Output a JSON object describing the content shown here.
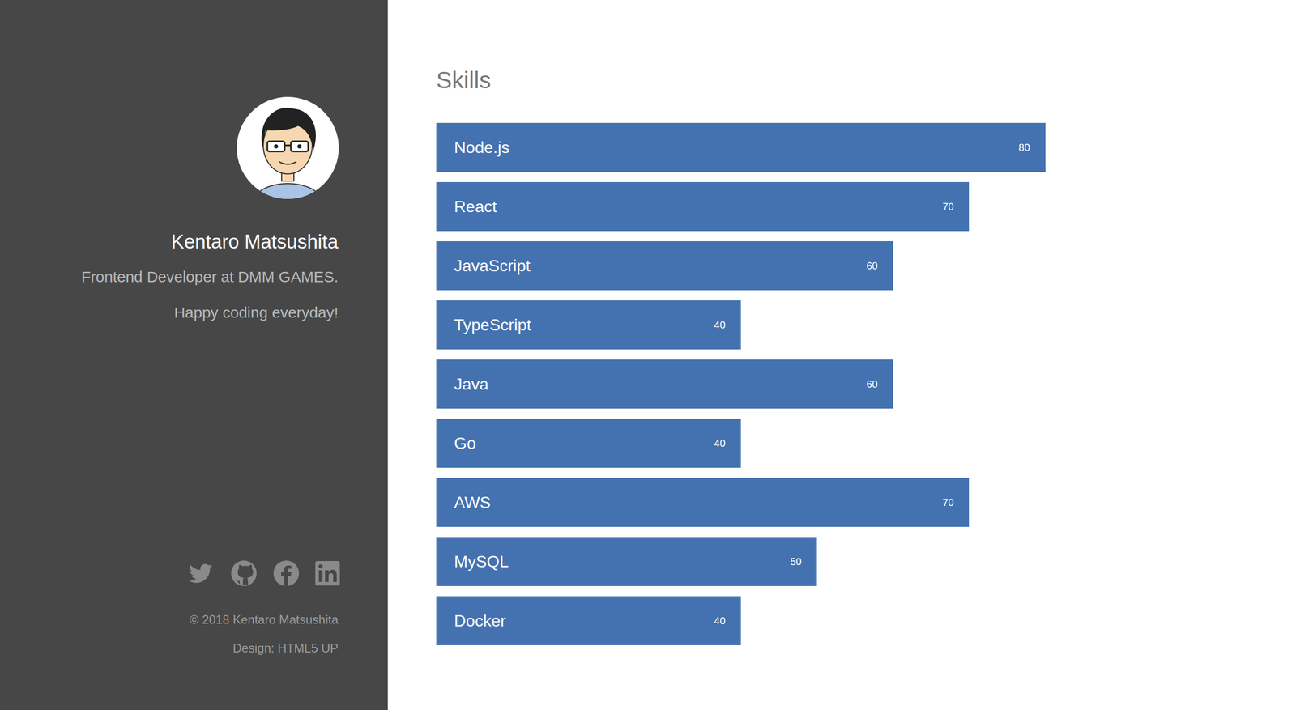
{
  "profile": {
    "name": "Kentaro Matsushita",
    "bio": [
      "Frontend Developer at DMM GAMES.",
      "Happy coding everyday!"
    ]
  },
  "footer": [
    "© 2018 Kentaro Matsushita",
    "Design: HTML5 UP"
  ],
  "chart_data": {
    "type": "bar",
    "title": "Skills",
    "orientation": "horizontal",
    "categories": [
      "Node.js",
      "React",
      "JavaScript",
      "TypeScript",
      "Java",
      "Go",
      "AWS",
      "MySQL",
      "Docker"
    ],
    "values": [
      80,
      70,
      60,
      40,
      60,
      40,
      70,
      50,
      40
    ],
    "color": "#4472b0",
    "xlim": [
      0,
      100
    ],
    "data_labels": true,
    "tick_labels": false,
    "grid": false
  }
}
